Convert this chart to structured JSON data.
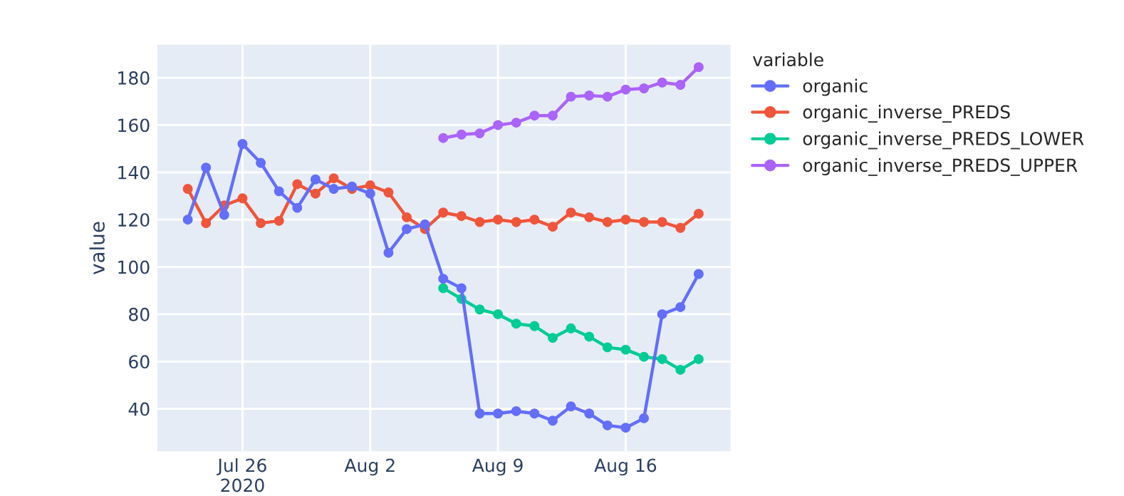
{
  "chart_data": {
    "type": "line",
    "xlabel": null,
    "ylabel": "value",
    "legend_title": "variable",
    "x": [
      "2020-07-23",
      "2020-07-24",
      "2020-07-25",
      "2020-07-26",
      "2020-07-27",
      "2020-07-28",
      "2020-07-29",
      "2020-07-30",
      "2020-07-31",
      "2020-08-01",
      "2020-08-02",
      "2020-08-03",
      "2020-08-04",
      "2020-08-05",
      "2020-08-06",
      "2020-08-07",
      "2020-08-08",
      "2020-08-09",
      "2020-08-10",
      "2020-08-11",
      "2020-08-12",
      "2020-08-13",
      "2020-08-14",
      "2020-08-15",
      "2020-08-16",
      "2020-08-17",
      "2020-08-18",
      "2020-08-19",
      "2020-08-20"
    ],
    "series": [
      {
        "name": "organic",
        "color": "#636efa",
        "values": [
          120,
          142,
          122,
          152,
          144,
          132,
          125,
          137,
          133,
          134,
          131,
          106,
          116,
          118,
          95,
          91,
          38,
          38,
          39,
          38,
          35,
          41,
          38,
          33,
          32,
          36,
          80,
          83,
          97
        ]
      },
      {
        "name": "organic_inverse_PREDS",
        "color": "#ef553b",
        "values": [
          133,
          118.5,
          126,
          129,
          118.5,
          119.5,
          135,
          131,
          137.5,
          133,
          134.5,
          131.5,
          121,
          116,
          123,
          121.5,
          119,
          120,
          119,
          120,
          117,
          123,
          121,
          119,
          120,
          119,
          119,
          116.5,
          122.5
        ]
      },
      {
        "name": "organic_inverse_PREDS_LOWER",
        "color": "#00cc96",
        "values": [
          null,
          null,
          null,
          null,
          null,
          null,
          null,
          null,
          null,
          null,
          null,
          null,
          null,
          null,
          91,
          86.5,
          82,
          80,
          76,
          75,
          70,
          74,
          70.5,
          66,
          65,
          62,
          61,
          56.5,
          61
        ]
      },
      {
        "name": "organic_inverse_PREDS_UPPER",
        "color": "#ab63fa",
        "values": [
          null,
          null,
          null,
          null,
          null,
          null,
          null,
          null,
          null,
          null,
          null,
          null,
          null,
          null,
          154.5,
          156,
          156.5,
          160,
          161,
          164,
          164,
          172,
          172.5,
          172,
          175,
          175.5,
          178,
          177,
          184.5
        ]
      }
    ],
    "xlim": [
      "2020-07-21T08:00",
      "2020-08-21T18:00"
    ],
    "xticks": [
      {
        "value": "2020-07-26",
        "label": "Jul 26\n2020"
      },
      {
        "value": "2020-08-02",
        "label": "Aug 2"
      },
      {
        "value": "2020-08-09",
        "label": "Aug 9"
      },
      {
        "value": "2020-08-16",
        "label": "Aug 16"
      }
    ],
    "ylim": [
      22,
      194
    ],
    "yticks": [
      40,
      60,
      80,
      100,
      120,
      140,
      160,
      180
    ],
    "grid": true,
    "legend": "right",
    "marker": "circle",
    "line_style": "solid"
  }
}
